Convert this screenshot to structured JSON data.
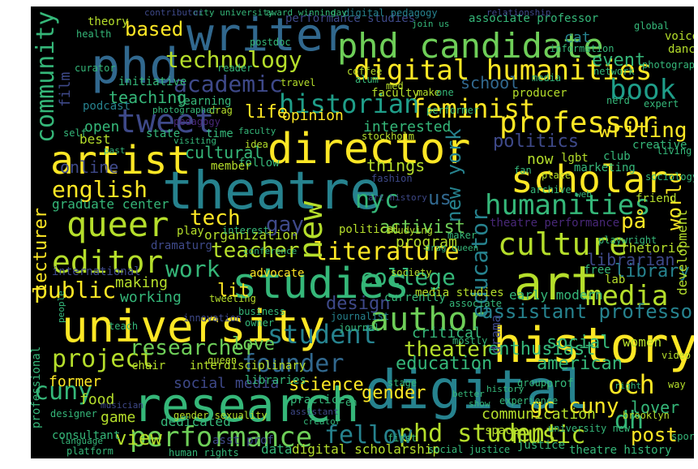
{
  "palette": {
    "yellow": "#fde725",
    "lime": "#b5de2b",
    "green": "#6ece58",
    "teal_green": "#35b779",
    "teal": "#1f9e89",
    "teal_blue": "#26828e",
    "blue": "#31688e",
    "indigo": "#3e4989",
    "purple": "#482878",
    "dark": "#440154"
  },
  "words": [
    {
      "text": "theatre",
      "color": "#26828e"
    },
    {
      "text": "phd candidate",
      "color": "#6ece58"
    },
    {
      "text": "digital humanities",
      "color": "#fde725"
    },
    {
      "text": "university",
      "color": "#fde725"
    },
    {
      "text": "digital",
      "color": "#26828e"
    },
    {
      "text": "history",
      "color": "#fde725"
    },
    {
      "text": "research",
      "color": "#35b779"
    },
    {
      "text": "director",
      "color": "#fde725"
    },
    {
      "text": "writer",
      "color": "#31688e"
    },
    {
      "text": "phd",
      "color": "#31688e"
    },
    {
      "text": "art",
      "color": "#b5de2b"
    },
    {
      "text": "studies",
      "color": "#35b779"
    },
    {
      "text": "artist",
      "color": "#fde725"
    },
    {
      "text": "scholar",
      "color": "#fde725"
    },
    {
      "text": "queer",
      "color": "#b5de2b"
    },
    {
      "text": "tweet",
      "color": "#3e4989"
    },
    {
      "text": "author",
      "color": "#6ece58"
    },
    {
      "text": "editor",
      "color": "#b5de2b"
    },
    {
      "text": "culture",
      "color": "#b5de2b"
    },
    {
      "text": "performance",
      "color": "#6ece58"
    },
    {
      "text": "phd student",
      "color": "#b5de2b"
    },
    {
      "text": "feminist",
      "color": "#fde725"
    },
    {
      "text": "professor",
      "color": "#fde725"
    },
    {
      "text": "humanities",
      "color": "#35b779"
    },
    {
      "text": "technology",
      "color": "#b5de2b"
    },
    {
      "text": "historian",
      "color": "#1f9e89"
    },
    {
      "text": "student",
      "color": "#26828e"
    },
    {
      "text": "founder",
      "color": "#31688e"
    },
    {
      "text": "literature",
      "color": "#fde725"
    },
    {
      "text": "community",
      "color": "#35b779"
    },
    {
      "text": "academic",
      "color": "#3e4989"
    },
    {
      "text": "english",
      "color": "#fde725"
    },
    {
      "text": "book",
      "color": "#1f9e89"
    },
    {
      "text": "new",
      "color": "#b5de2b"
    },
    {
      "text": "educator",
      "color": "#26828e"
    },
    {
      "text": "new york",
      "color": "#26828e"
    },
    {
      "text": "media",
      "color": "#b5de2b"
    },
    {
      "text": "music",
      "color": "#b5de2b"
    },
    {
      "text": "assistant professor",
      "color": "#26828e"
    },
    {
      "text": "project",
      "color": "#b5de2b"
    },
    {
      "text": "public",
      "color": "#fde725"
    },
    {
      "text": "work",
      "color": "#35b779"
    },
    {
      "text": "teacher",
      "color": "#b5de2b"
    },
    {
      "text": "researcher",
      "color": "#6ece58"
    },
    {
      "text": "fellow",
      "color": "#26828e"
    },
    {
      "text": "cuny",
      "color": "#35b779"
    },
    {
      "text": "och",
      "color": "#fde725"
    },
    {
      "text": "dh",
      "color": "#35b779"
    },
    {
      "text": "nyc",
      "color": "#35b779"
    },
    {
      "text": "writing",
      "color": "#fde725"
    },
    {
      "text": "gay",
      "color": "#3e4989"
    },
    {
      "text": "tech",
      "color": "#fde725"
    },
    {
      "text": "college",
      "color": "#35b779"
    },
    {
      "text": "theater",
      "color": "#b5de2b"
    },
    {
      "text": "education",
      "color": "#35b779"
    },
    {
      "text": "lecturer",
      "color": "#fde725"
    },
    {
      "text": "view",
      "color": "#b5de2b"
    },
    {
      "text": "gc cuny",
      "color": "#fde725"
    },
    {
      "text": "american",
      "color": "#35b779"
    },
    {
      "text": "lover",
      "color": "#35b779"
    },
    {
      "text": "based",
      "color": "#fde725"
    },
    {
      "text": "event",
      "color": "#35b779"
    },
    {
      "text": "world",
      "color": "#fde725"
    },
    {
      "text": "activist",
      "color": "#6ece58"
    },
    {
      "text": "design",
      "color": "#3e4989"
    },
    {
      "text": "library",
      "color": "#26828e"
    },
    {
      "text": "librarian",
      "color": "#3e4989"
    },
    {
      "text": "på",
      "color": "#fde725"
    },
    {
      "text": "us",
      "color": "#31688e"
    },
    {
      "text": "lit",
      "color": "#fde725"
    },
    {
      "text": "enthusiast",
      "color": "#35b779"
    },
    {
      "text": "love",
      "color": "#6ece58"
    },
    {
      "text": "social",
      "color": "#35b779"
    },
    {
      "text": "gender",
      "color": "#fde725"
    },
    {
      "text": "science",
      "color": "#fde725"
    },
    {
      "text": "social media",
      "color": "#3e4989"
    },
    {
      "text": "opinion",
      "color": "#fde725"
    },
    {
      "text": "life",
      "color": "#fde725"
    },
    {
      "text": "school",
      "color": "#31688e"
    },
    {
      "text": "politics",
      "color": "#3e4989"
    },
    {
      "text": "film",
      "color": "#3e4989"
    },
    {
      "text": "teaching",
      "color": "#35b779"
    },
    {
      "text": "cultural",
      "color": "#35b779"
    },
    {
      "text": "online",
      "color": "#3e4989"
    },
    {
      "text": "open",
      "color": "#35b779"
    },
    {
      "text": "best",
      "color": "#b5de2b"
    },
    {
      "text": "program",
      "color": "#b5de2b"
    },
    {
      "text": "working",
      "color": "#35b779"
    },
    {
      "text": "making",
      "color": "#b5de2b"
    },
    {
      "text": "critical",
      "color": "#35b779"
    },
    {
      "text": "former",
      "color": "#fde725"
    },
    {
      "text": "food",
      "color": "#b5de2b"
    },
    {
      "text": "game",
      "color": "#b5de2b"
    },
    {
      "text": "consultant",
      "color": "#35b779"
    },
    {
      "text": "dedicated",
      "color": "#35b779"
    },
    {
      "text": "things",
      "color": "#b5de2b"
    },
    {
      "text": "interested",
      "color": "#35b779"
    },
    {
      "text": "graduate center",
      "color": "#35b779"
    },
    {
      "text": "organization",
      "color": "#b5de2b"
    },
    {
      "text": "drama",
      "color": "#3e4989"
    },
    {
      "text": "now",
      "color": "#b5de2b"
    },
    {
      "text": "theatre performance",
      "color": "#482878"
    },
    {
      "text": "development",
      "color": "#b5de2b"
    },
    {
      "text": "rhetoric",
      "color": "#b5de2b"
    },
    {
      "text": "early modern",
      "color": "#35b779"
    },
    {
      "text": "communication",
      "color": "#b5de2b"
    },
    {
      "text": "post",
      "color": "#fde725"
    },
    {
      "text": "women",
      "color": "#b5de2b"
    },
    {
      "text": "data",
      "color": "#35b779"
    },
    {
      "text": "digital scholarship",
      "color": "#b5de2b"
    },
    {
      "text": "theatre history",
      "color": "#35b779"
    },
    {
      "text": "performance studies",
      "color": "#3e4989"
    },
    {
      "text": "associate professor",
      "color": "#35b779"
    },
    {
      "text": "cat",
      "color": "#26828e"
    },
    {
      "text": "dance",
      "color": "#b5de2b"
    },
    {
      "text": "voice",
      "color": "#b5de2b"
    },
    {
      "text": "theory",
      "color": "#b5de2b"
    },
    {
      "text": "digital pedagogy",
      "color": "#26828e"
    },
    {
      "text": "podcast",
      "color": "#26828e"
    },
    {
      "text": "initiative",
      "color": "#35b779"
    },
    {
      "text": "learning",
      "color": "#35b779"
    },
    {
      "text": "pedagogy",
      "color": "#482878"
    },
    {
      "text": "creative",
      "color": "#35b779"
    },
    {
      "text": "club",
      "color": "#35b779"
    },
    {
      "text": "lgbt",
      "color": "#b5de2b"
    },
    {
      "text": "place",
      "color": "#b5de2b"
    },
    {
      "text": "advocate",
      "color": "#fde725"
    },
    {
      "text": "free",
      "color": "#35b779"
    },
    {
      "text": "lab",
      "color": "#b5de2b"
    },
    {
      "text": "playwright",
      "color": "#35b779"
    },
    {
      "text": "media studies",
      "color": "#b5de2b"
    },
    {
      "text": "currently",
      "color": "#35b779"
    },
    {
      "text": "journalist",
      "color": "#26828e"
    },
    {
      "text": "chair",
      "color": "#b5de2b"
    },
    {
      "text": "interdisciplinary",
      "color": "#b5de2b"
    },
    {
      "text": "libraries",
      "color": "#35b779"
    },
    {
      "text": "practice",
      "color": "#35b779"
    },
    {
      "text": "gender sexuality",
      "color": "#b5de2b"
    },
    {
      "text": "asst prof",
      "color": "#3e4989"
    },
    {
      "text": "human rights",
      "color": "#35b779"
    },
    {
      "text": "social justice",
      "color": "#35b779"
    },
    {
      "text": "justice",
      "color": "#35b779"
    },
    {
      "text": "experience",
      "color": "#35b779"
    },
    {
      "text": "university new",
      "color": "#35b779"
    },
    {
      "text": "sport",
      "color": "#35b779"
    },
    {
      "text": "professional",
      "color": "#35b779"
    },
    {
      "text": "international",
      "color": "#3e4989"
    },
    {
      "text": "producer",
      "color": "#b5de2b"
    },
    {
      "text": "coffee",
      "color": "#b5de2b"
    },
    {
      "text": "faculty",
      "color": "#b5de2b"
    },
    {
      "text": "fashion",
      "color": "#3e4989"
    },
    {
      "text": "travel",
      "color": "#b5de2b"
    },
    {
      "text": "make",
      "color": "#b5de2b"
    },
    {
      "text": "one",
      "color": "#35b779"
    },
    {
      "text": "performer",
      "color": "#35b779"
    },
    {
      "text": "health",
      "color": "#35b779"
    },
    {
      "text": "stockholm",
      "color": "#b5de2b"
    },
    {
      "text": "marketing",
      "color": "#35b779"
    },
    {
      "text": "state",
      "color": "#35b779"
    },
    {
      "text": "time",
      "color": "#35b779"
    },
    {
      "text": "idea",
      "color": "#b5de2b"
    },
    {
      "text": "follow",
      "color": "#35b779"
    },
    {
      "text": "member",
      "color": "#b5de2b"
    },
    {
      "text": "political",
      "color": "#b5de2b"
    },
    {
      "text": "studying",
      "color": "#b5de2b"
    },
    {
      "text": "archive",
      "color": "#35b779"
    },
    {
      "text": "play",
      "color": "#b5de2b"
    },
    {
      "text": "interest",
      "color": "#35b779"
    },
    {
      "text": "dramaturg",
      "color": "#3e4989"
    },
    {
      "text": "tweeting",
      "color": "#b5de2b"
    },
    {
      "text": "innovation",
      "color": "#3e4989"
    },
    {
      "text": "associate",
      "color": "#35b779"
    },
    {
      "text": "journal",
      "color": "#35b779"
    },
    {
      "text": "society",
      "color": "#b5de2b"
    },
    {
      "text": "friend",
      "color": "#b5de2b"
    },
    {
      "text": "maker",
      "color": "#35b779"
    },
    {
      "text": "teach",
      "color": "#35b779"
    },
    {
      "text": "brooklyn",
      "color": "#b5de2b"
    },
    {
      "text": "group",
      "color": "#35b779"
    },
    {
      "text": "prof",
      "color": "#35b779"
    },
    {
      "text": "queen",
      "color": "#b5de2b"
    },
    {
      "text": "designer",
      "color": "#35b779"
    },
    {
      "text": "stage",
      "color": "#35b779"
    },
    {
      "text": "space",
      "color": "#b5de2b"
    },
    {
      "text": "first",
      "color": "#35b779"
    },
    {
      "text": "video",
      "color": "#b5de2b"
    },
    {
      "text": "nerd",
      "color": "#35b779"
    },
    {
      "text": "photography",
      "color": "#35b779"
    },
    {
      "text": "expert",
      "color": "#35b779"
    },
    {
      "text": "global",
      "color": "#35b779"
    },
    {
      "text": "media",
      "color": "#35b779"
    },
    {
      "text": "sociology",
      "color": "#35b779"
    },
    {
      "text": "living",
      "color": "#35b779"
    },
    {
      "text": "way",
      "color": "#b5de2b"
    },
    {
      "text": "mostly",
      "color": "#35b779"
    },
    {
      "text": "curator",
      "color": "#35b779"
    },
    {
      "text": "drag",
      "color": "#b5de2b"
    },
    {
      "text": "self",
      "color": "#35b779"
    },
    {
      "text": "information",
      "color": "#35b779"
    },
    {
      "text": "postdoc",
      "color": "#35b779"
    },
    {
      "text": "network",
      "color": "#35b779"
    },
    {
      "text": "reader",
      "color": "#35b779"
    },
    {
      "text": "photographer",
      "color": "#35b779"
    },
    {
      "text": "city university",
      "color": "#35b779"
    },
    {
      "text": "award winning",
      "color": "#35b779"
    },
    {
      "text": "contributor",
      "color": "#3e4989"
    },
    {
      "text": "day",
      "color": "#35b779"
    },
    {
      "text": "relationship",
      "color": "#3e4989"
    },
    {
      "text": "join us",
      "color": "#35b779"
    },
    {
      "text": "alum",
      "color": "#35b779"
    },
    {
      "text": "business",
      "color": "#35b779"
    },
    {
      "text": "owner",
      "color": "#35b779"
    },
    {
      "text": "art history",
      "color": "#3e4989"
    },
    {
      "text": "drag queen",
      "color": "#35b779"
    },
    {
      "text": "fan",
      "color": "#35b779"
    },
    {
      "text": "right",
      "color": "#35b779"
    },
    {
      "text": "musician",
      "color": "#3e4989"
    },
    {
      "text": "assistant",
      "color": "#3e4989"
    },
    {
      "text": "creator",
      "color": "#35b779"
    },
    {
      "text": "better",
      "color": "#35b779"
    },
    {
      "text": "show",
      "color": "#35b779"
    },
    {
      "text": "history",
      "color": "#35b779"
    },
    {
      "text": "web",
      "color": "#35b779"
    },
    {
      "text": "conference",
      "color": "#35b779"
    },
    {
      "text": "faculty",
      "color": "#35b779"
    },
    {
      "text": "platform",
      "color": "#35b779"
    },
    {
      "text": "language",
      "color": "#35b779"
    },
    {
      "text": "en",
      "color": "#35b779"
    },
    {
      "text": "visiting",
      "color": "#35b779"
    },
    {
      "text": "past",
      "color": "#35b779"
    },
    {
      "text": "people",
      "color": "#35b779"
    },
    {
      "text": "med",
      "color": "#b5de2b"
    }
  ]
}
